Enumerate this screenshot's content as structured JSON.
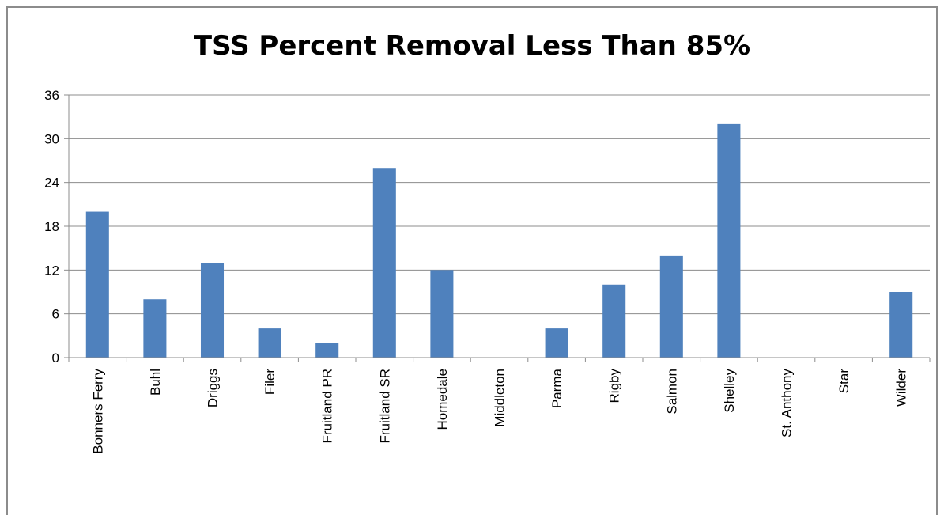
{
  "chart_data": {
    "type": "bar",
    "title": "TSS Percent Removal Less Than 85%",
    "xlabel": "",
    "ylabel": "",
    "categories": [
      "Bonners Ferry",
      "Buhl",
      "Driggs",
      "Filer",
      "Fruitland PR",
      "Fruitland SR",
      "Homedale",
      "Middleton",
      "Parma",
      "Rigby",
      "Salmon",
      "Shelley",
      "St. Anthony",
      "Star",
      "Wilder"
    ],
    "values": [
      20,
      8,
      13,
      4,
      2,
      26,
      12,
      0,
      4,
      10,
      14,
      32,
      0,
      0,
      9
    ],
    "ylim": [
      0,
      36
    ],
    "yticks": [
      0,
      6,
      12,
      18,
      24,
      30,
      36
    ],
    "grid": true,
    "legend": "none",
    "colors": {
      "bar": "#4f81bd",
      "gridline": "#8c8c8c",
      "axis": "#8c8c8c"
    }
  }
}
